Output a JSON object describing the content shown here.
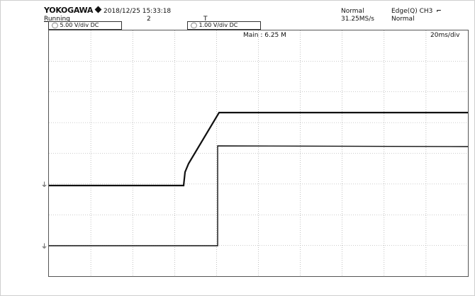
{
  "header": {
    "brand": "YOKOGAWA",
    "timestamp": "2018/12/25 15:33:18",
    "run_state": "Running",
    "acq_count": "2",
    "trigger_marker": "T",
    "acq_mode": "Normal",
    "sample_rate": "31.25MS/s",
    "trigger_source": "Edge(Q) CH3",
    "trigger_edge_icon": "rising-edge-icon",
    "trigger_mode": "Normal"
  },
  "channels": [
    {
      "name": "CH1",
      "label": "5.00 V/div",
      "coupling": "DC",
      "color": "#111111"
    },
    {
      "name": "CH2",
      "label": "1.00 V/div",
      "coupling": "DC",
      "color": "#111111"
    }
  ],
  "timebase": {
    "main_label": "Main : 6.25 M",
    "time_per_div": "20ms/div"
  },
  "display": {
    "grid": true,
    "h_divisions": 10,
    "v_divisions": 8,
    "grid_color": "#9a9a9a",
    "trace_color": "#111111"
  },
  "traces": {
    "upper_trace": "step from low level to high level with linear ramp",
    "lower_trace": "step up at trigger point"
  }
}
